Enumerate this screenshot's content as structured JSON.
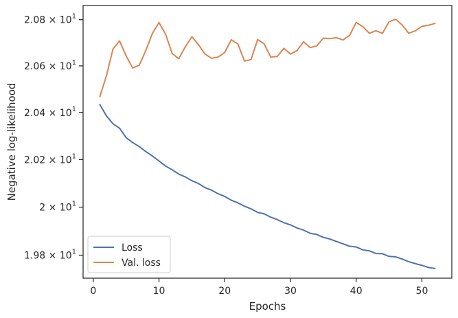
{
  "chart_data": {
    "type": "line",
    "xlabel": "Epochs",
    "ylabel": "Negative log-likelihood",
    "xlim": [
      -1.55,
      54.55
    ],
    "ylim": [
      19.705,
      20.862
    ],
    "yscale": "log",
    "grid": false,
    "legend_placement": "lower-left",
    "x_ticks": [
      {
        "value": 0,
        "label": "0"
      },
      {
        "value": 10,
        "label": "10"
      },
      {
        "value": 20,
        "label": "20"
      },
      {
        "value": 30,
        "label": "30"
      },
      {
        "value": 40,
        "label": "40"
      },
      {
        "value": 50,
        "label": "50"
      }
    ],
    "y_ticks": [
      {
        "value": 19.8,
        "base": "1.98",
        "exp": "1"
      },
      {
        "value": 20.0,
        "base": "2",
        "exp": "1"
      },
      {
        "value": 20.2,
        "base": "2.02",
        "exp": "1"
      },
      {
        "value": 20.4,
        "base": "2.04",
        "exp": "1"
      },
      {
        "value": 20.6,
        "base": "2.06",
        "exp": "1"
      },
      {
        "value": 20.8,
        "base": "2.08",
        "exp": "1"
      }
    ],
    "x": [
      1,
      2,
      3,
      4,
      5,
      6,
      7,
      8,
      9,
      10,
      11,
      12,
      13,
      14,
      15,
      16,
      17,
      18,
      19,
      20,
      21,
      22,
      23,
      24,
      25,
      26,
      27,
      28,
      29,
      30,
      31,
      32,
      33,
      34,
      35,
      36,
      37,
      38,
      39,
      40,
      41,
      42,
      43,
      44,
      45,
      46,
      47,
      48,
      49,
      50,
      51,
      52
    ],
    "series": [
      {
        "name": "Loss",
        "color": "#4c72b0",
        "values": [
          20.434,
          20.386,
          20.352,
          20.333,
          20.293,
          20.272,
          20.255,
          20.234,
          20.215,
          20.194,
          20.173,
          20.157,
          20.139,
          20.127,
          20.111,
          20.099,
          20.082,
          20.071,
          20.056,
          20.045,
          20.029,
          20.018,
          20.004,
          19.993,
          19.978,
          19.972,
          19.958,
          19.948,
          19.935,
          19.926,
          19.913,
          19.904,
          19.891,
          19.886,
          19.874,
          19.867,
          19.857,
          19.847,
          19.837,
          19.834,
          19.822,
          19.818,
          19.807,
          19.806,
          19.795,
          19.793,
          19.784,
          19.773,
          19.765,
          19.758,
          19.749,
          19.745
        ]
      },
      {
        "name": "Val. loss",
        "color": "#dd8452",
        "values": [
          20.468,
          20.557,
          20.673,
          20.708,
          20.643,
          20.591,
          20.603,
          20.667,
          20.741,
          20.788,
          20.737,
          20.654,
          20.631,
          20.682,
          20.726,
          20.692,
          20.651,
          20.633,
          20.638,
          20.658,
          20.713,
          20.695,
          20.621,
          20.627,
          20.714,
          20.695,
          20.638,
          20.641,
          20.676,
          20.651,
          20.666,
          20.704,
          20.679,
          20.686,
          20.72,
          20.718,
          20.722,
          20.712,
          20.732,
          20.788,
          20.77,
          20.741,
          20.752,
          20.741,
          20.791,
          20.802,
          20.777,
          20.741,
          20.752,
          20.771,
          20.776,
          20.784
        ]
      }
    ]
  }
}
